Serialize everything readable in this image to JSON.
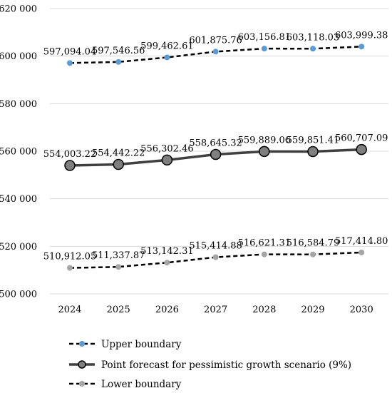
{
  "chart_data": {
    "type": "line",
    "title": "",
    "xlabel": "",
    "ylabel": "",
    "x": [
      "2024",
      "2025",
      "2026",
      "2027",
      "2028",
      "2029",
      "2030"
    ],
    "ylim": [
      500000,
      620000
    ],
    "yticks": [
      500000,
      520000,
      540000,
      560000,
      580000,
      600000,
      620000
    ],
    "ytick_labels": [
      "500 000",
      "520 000",
      "540 000",
      "560 000",
      "580 000",
      "600 000",
      "620 000"
    ],
    "grid": "horizontal",
    "legend_position": "bottom",
    "series": [
      {
        "name": "Upper boundary",
        "values": [
          597094.04,
          597546.56,
          599462.61,
          601875.76,
          603156.81,
          603118.03,
          603999.38
        ],
        "labels": [
          "597,094.04",
          "597,546.56",
          "599,462.61",
          "601,875.76",
          "603,156.81",
          "603,118.03",
          "603,999.38"
        ],
        "line_style": "dashed",
        "line_color": "#000000",
        "marker_color": "#5b9bd5"
      },
      {
        "name": "Point forecast for pessimistic growth scenario (9%)",
        "values": [
          554003.22,
          554442.22,
          556302.46,
          558645.32,
          559889.06,
          559851.41,
          560707.09
        ],
        "labels": [
          "554,003.22",
          "554,442.22",
          "556,302.46",
          "558,645.32",
          "559,889.06",
          "559,851.41",
          "560,707.09"
        ],
        "line_style": "solid",
        "line_color": "#404040",
        "marker_color": "#7f7f7f"
      },
      {
        "name": "Lower boundary",
        "values": [
          510912.05,
          511337.87,
          513142.31,
          515414.88,
          516621.31,
          516584.79,
          517414.8
        ],
        "labels": [
          "510,912.05",
          "511,337.87",
          "513,142.31",
          "515,414.88",
          "516,621.31",
          "516,584.79",
          "517,414.80"
        ],
        "line_style": "dashed",
        "line_color": "#000000",
        "marker_color": "#a5a5a5"
      }
    ]
  }
}
